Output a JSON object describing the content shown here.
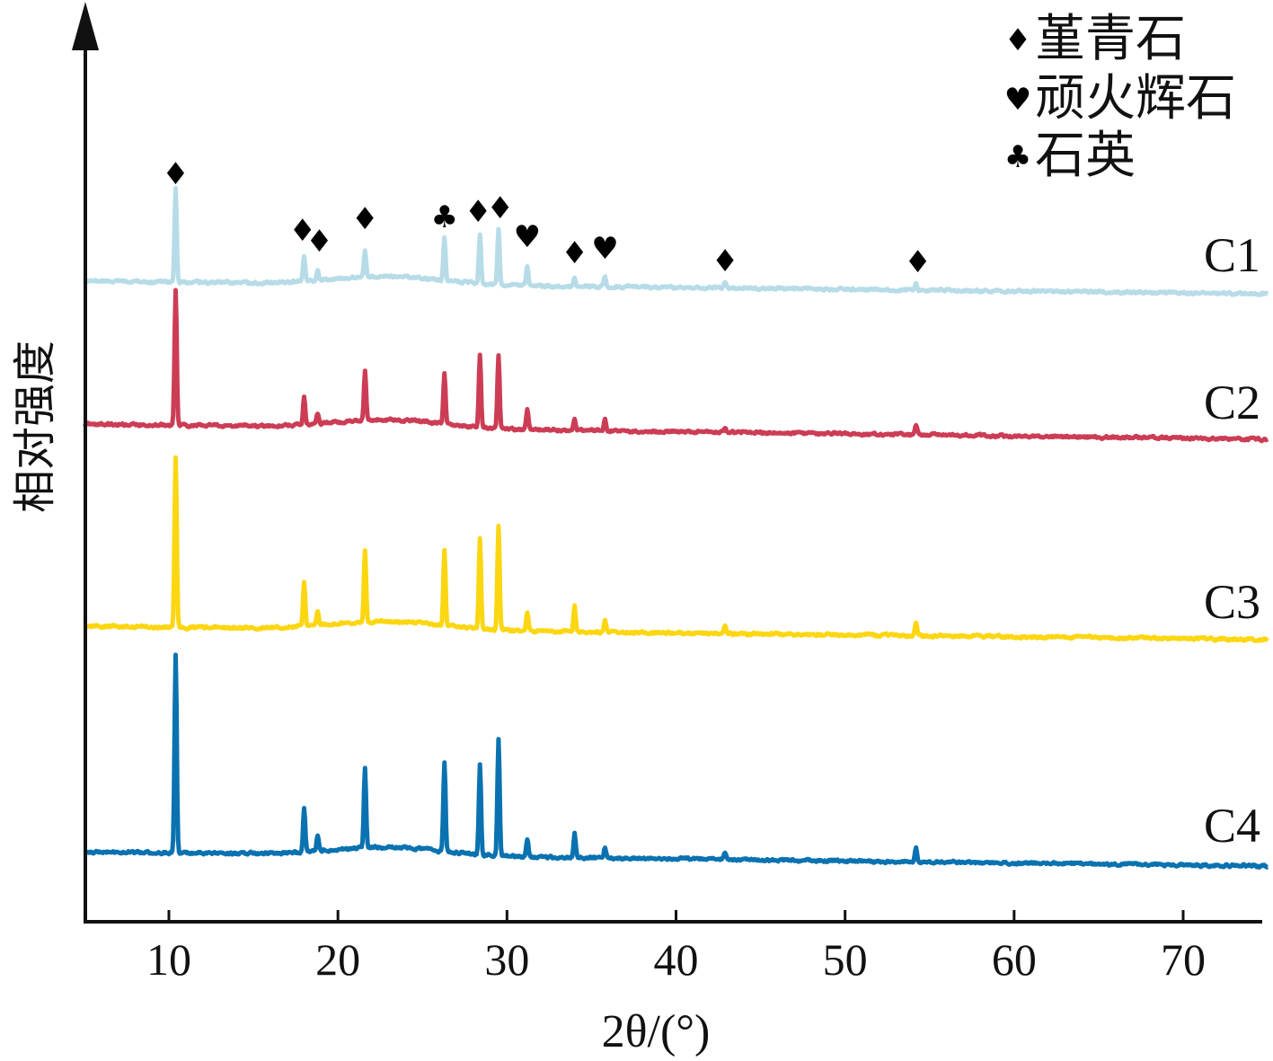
{
  "chart_data": {
    "type": "line",
    "xlabel": "2θ/(°)",
    "ylabel": "相对强度",
    "xlim": [
      5,
      75
    ],
    "x_ticks": [
      "10",
      "20",
      "30",
      "40",
      "50",
      "60",
      "70"
    ],
    "y_ticks": [],
    "grid": false,
    "legend_position": "top-right",
    "legend": [
      {
        "symbol": "♦",
        "label": "堇青石"
      },
      {
        "symbol": "♥",
        "label": "顽火辉石"
      },
      {
        "symbol": "♣",
        "label": "石英"
      }
    ],
    "peak_positions": [
      10.4,
      18.0,
      18.8,
      21.6,
      26.3,
      28.4,
      29.5,
      31.2,
      34.0,
      35.8,
      42.9,
      54.2
    ],
    "series": [
      {
        "name": "C1",
        "color": "#b7dce8",
        "peak_heights": [
          105,
          28,
          12,
          30,
          48,
          55,
          60,
          22,
          10,
          12,
          6,
          8
        ]
      },
      {
        "name": "C2",
        "color": "#cc3d55",
        "peak_heights": [
          150,
          30,
          12,
          55,
          55,
          80,
          80,
          22,
          14,
          12,
          6,
          10
        ]
      },
      {
        "name": "C3",
        "color": "#fcd610",
        "peak_heights": [
          190,
          50,
          15,
          80,
          85,
          100,
          115,
          20,
          28,
          14,
          8,
          14
        ]
      },
      {
        "name": "C4",
        "color": "#0a72b0",
        "peak_heights": [
          220,
          48,
          18,
          90,
          100,
          100,
          130,
          20,
          28,
          12,
          8,
          16
        ]
      }
    ],
    "annotations": [
      {
        "x": 10.4,
        "symbol": "♦"
      },
      {
        "x": 17.9,
        "symbol": "♦"
      },
      {
        "x": 18.9,
        "symbol": "♦"
      },
      {
        "x": 21.6,
        "symbol": "♦"
      },
      {
        "x": 26.3,
        "symbol": "♣"
      },
      {
        "x": 28.3,
        "symbol": "♦"
      },
      {
        "x": 29.6,
        "symbol": "♦"
      },
      {
        "x": 31.2,
        "symbol": "♥"
      },
      {
        "x": 34.0,
        "symbol": "♦"
      },
      {
        "x": 35.8,
        "symbol": "♥"
      },
      {
        "x": 42.9,
        "symbol": "♦"
      },
      {
        "x": 54.3,
        "symbol": "♦"
      }
    ]
  }
}
